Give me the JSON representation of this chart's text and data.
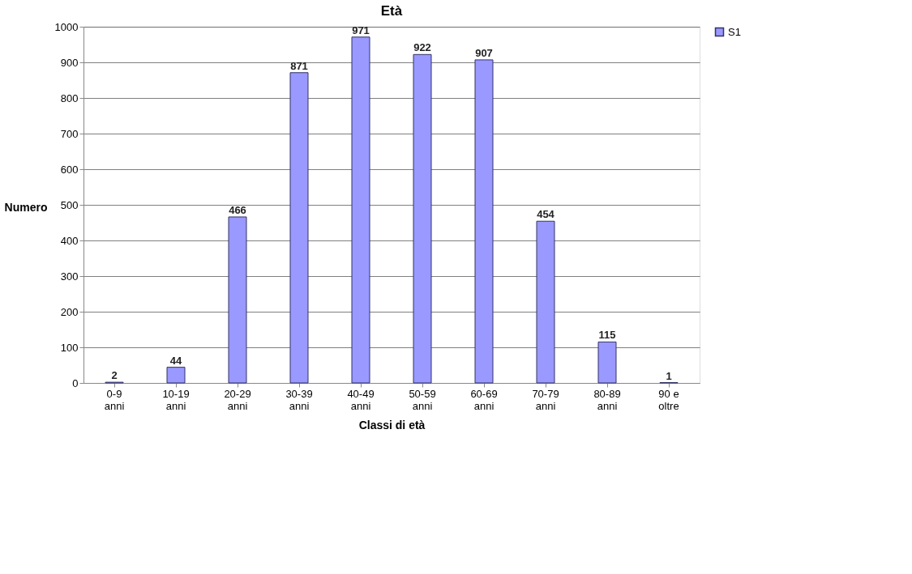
{
  "chart_data": {
    "type": "bar",
    "title": "Età",
    "xlabel": "Classi di età",
    "ylabel": "Numero",
    "categories": [
      "0-9 anni",
      "10-19 anni",
      "20-29 anni",
      "30-39 anni",
      "40-49 anni",
      "50-59 anni",
      "60-69 anni",
      "70-79 anni",
      "80-89 anni",
      "90 e oltre"
    ],
    "series": [
      {
        "name": "S1",
        "color": "#9999ff",
        "values": [
          2,
          44,
          466,
          871,
          971,
          922,
          907,
          454,
          115,
          1
        ]
      }
    ],
    "ylim": [
      0,
      1000
    ],
    "yticks": [
      0,
      100,
      200,
      300,
      400,
      500,
      600,
      700,
      800,
      900,
      1000
    ],
    "grid": "y",
    "data_labels": true,
    "legend": "right"
  }
}
